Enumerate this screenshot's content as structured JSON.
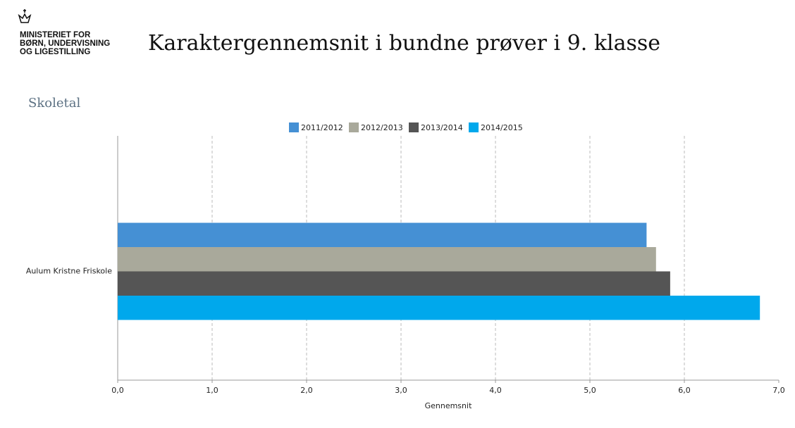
{
  "header": {
    "logo_lines": [
      "MINISTERIET FOR",
      "BØRN, UNDERVISNING",
      "OG LIGESTILLING"
    ],
    "title": "Karaktergennemsnit i bundne prøver i 9. klasse",
    "section": "Skoletal"
  },
  "chart_data": {
    "type": "bar",
    "orientation": "horizontal",
    "categories": [
      "Aulum Kristne Friskole"
    ],
    "series": [
      {
        "name": "2011/2012",
        "color": "#4590d4",
        "values": [
          5.6
        ]
      },
      {
        "name": "2012/2013",
        "color": "#a9a99b",
        "values": [
          5.7
        ]
      },
      {
        "name": "2013/2014",
        "color": "#555555",
        "values": [
          5.85
        ]
      },
      {
        "name": "2014/2015",
        "color": "#00a8ec",
        "values": [
          6.8
        ]
      }
    ],
    "xlabel": "Gennemsnit",
    "xlim": [
      0,
      7
    ],
    "xticks": [
      {
        "value": 0,
        "label": "0,0"
      },
      {
        "value": 1,
        "label": "1,0"
      },
      {
        "value": 2,
        "label": "2,0"
      },
      {
        "value": 3,
        "label": "3,0"
      },
      {
        "value": 4,
        "label": "4,0"
      },
      {
        "value": 5,
        "label": "5,0"
      },
      {
        "value": 6,
        "label": "6,0"
      },
      {
        "value": 7,
        "label": "7,0"
      }
    ],
    "grid": true,
    "legend": "top"
  }
}
